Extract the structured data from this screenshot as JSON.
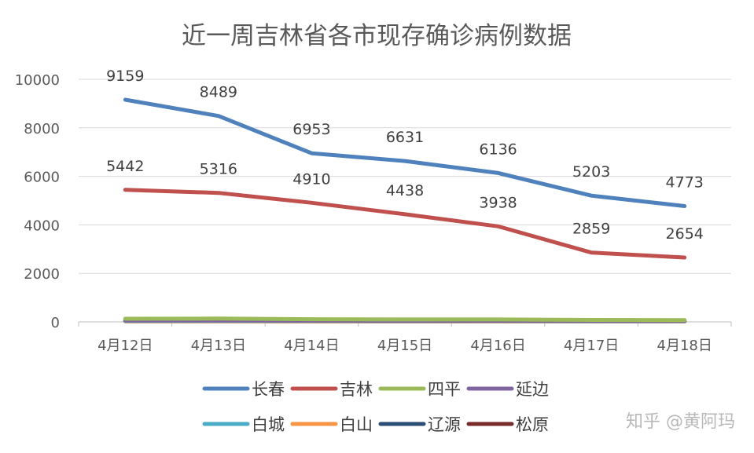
{
  "chart_data": {
    "type": "line",
    "title": "近一周吉林省各市现存确诊病例数据",
    "xlabel": "",
    "ylabel": "",
    "categories": [
      "4月12日",
      "4月13日",
      "4月14日",
      "4月15日",
      "4月16日",
      "4月17日",
      "4月18日"
    ],
    "ylim": [
      0,
      10000
    ],
    "yticks": [
      0,
      2000,
      4000,
      6000,
      8000,
      10000
    ],
    "grid": true,
    "legend_position": "bottom",
    "series": [
      {
        "name": "长春",
        "color": "#4f81bd",
        "values": [
          9159,
          8489,
          6953,
          6631,
          6136,
          5203,
          4773
        ],
        "labeled": true
      },
      {
        "name": "吉林",
        "color": "#c0504d",
        "values": [
          5442,
          5316,
          4910,
          4438,
          3938,
          2859,
          2654
        ],
        "labeled": true
      },
      {
        "name": "四平",
        "color": "#9bbb59",
        "values": [
          130,
          135,
          110,
          100,
          100,
          80,
          75
        ],
        "labeled": false
      },
      {
        "name": "延边",
        "color": "#8064a2",
        "values": [
          60,
          60,
          55,
          50,
          50,
          45,
          40
        ],
        "labeled": false
      },
      {
        "name": "白城",
        "color": "#4bacc6",
        "values": [
          40,
          40,
          40,
          35,
          35,
          30,
          30
        ],
        "labeled": false
      },
      {
        "name": "白山",
        "color": "#f79646",
        "values": [
          20,
          20,
          20,
          20,
          15,
          15,
          15
        ],
        "labeled": false
      },
      {
        "name": "辽源",
        "color": "#2c4d75",
        "values": [
          30,
          30,
          25,
          25,
          25,
          20,
          20
        ],
        "labeled": false
      },
      {
        "name": "松原",
        "color": "#772c2a",
        "values": [
          35,
          35,
          30,
          30,
          30,
          25,
          25
        ],
        "labeled": false
      }
    ]
  },
  "watermark": "知乎 @黄阿玛"
}
